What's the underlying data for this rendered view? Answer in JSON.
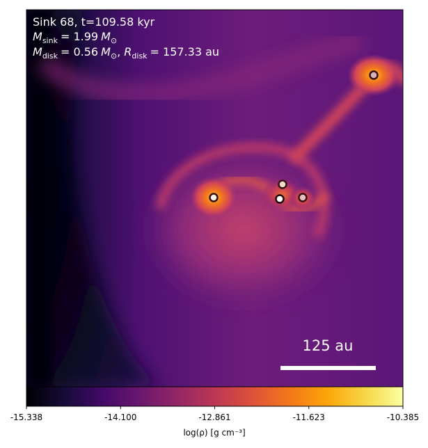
{
  "chart_data": {
    "type": "heatmap",
    "title_lines": [
      "Sink 68, t=109.58 kyr"
    ],
    "mass_line": {
      "sink": {
        "prefix": "M",
        "sub": "sink",
        "value": "= 1.99",
        "unit": "M",
        "unit_sub": "⊙"
      },
      "disk": {
        "prefix": "M",
        "sub": "disk",
        "value": "= 0.56",
        "unit": "M",
        "unit_sub": "⊙"
      },
      "radius": {
        "prefix": "R",
        "sub": "disk",
        "value": "= 157.33 au"
      }
    },
    "scale_bar": {
      "label": "125 au",
      "length_au": 125
    },
    "colorbar": {
      "label": "log(ρ) [g cm⁻³]",
      "ticks": [
        "-15.338",
        "-14.100",
        "-12.861",
        "-11.623",
        "-10.385"
      ],
      "range": [
        -15.338,
        -10.385
      ],
      "colormap": "inferno"
    },
    "sinks": [
      {
        "name": "sink-1",
        "x_frac_note": "map position",
        "fill": "#f6f0e8"
      },
      {
        "name": "sink-2",
        "fill": "#ffffff"
      },
      {
        "name": "sink-3",
        "fill": "#f2dccb"
      },
      {
        "name": "sink-4",
        "fill": "#e7c0c3"
      },
      {
        "name": "sink-5",
        "fill": "#d8b2b8"
      }
    ]
  }
}
